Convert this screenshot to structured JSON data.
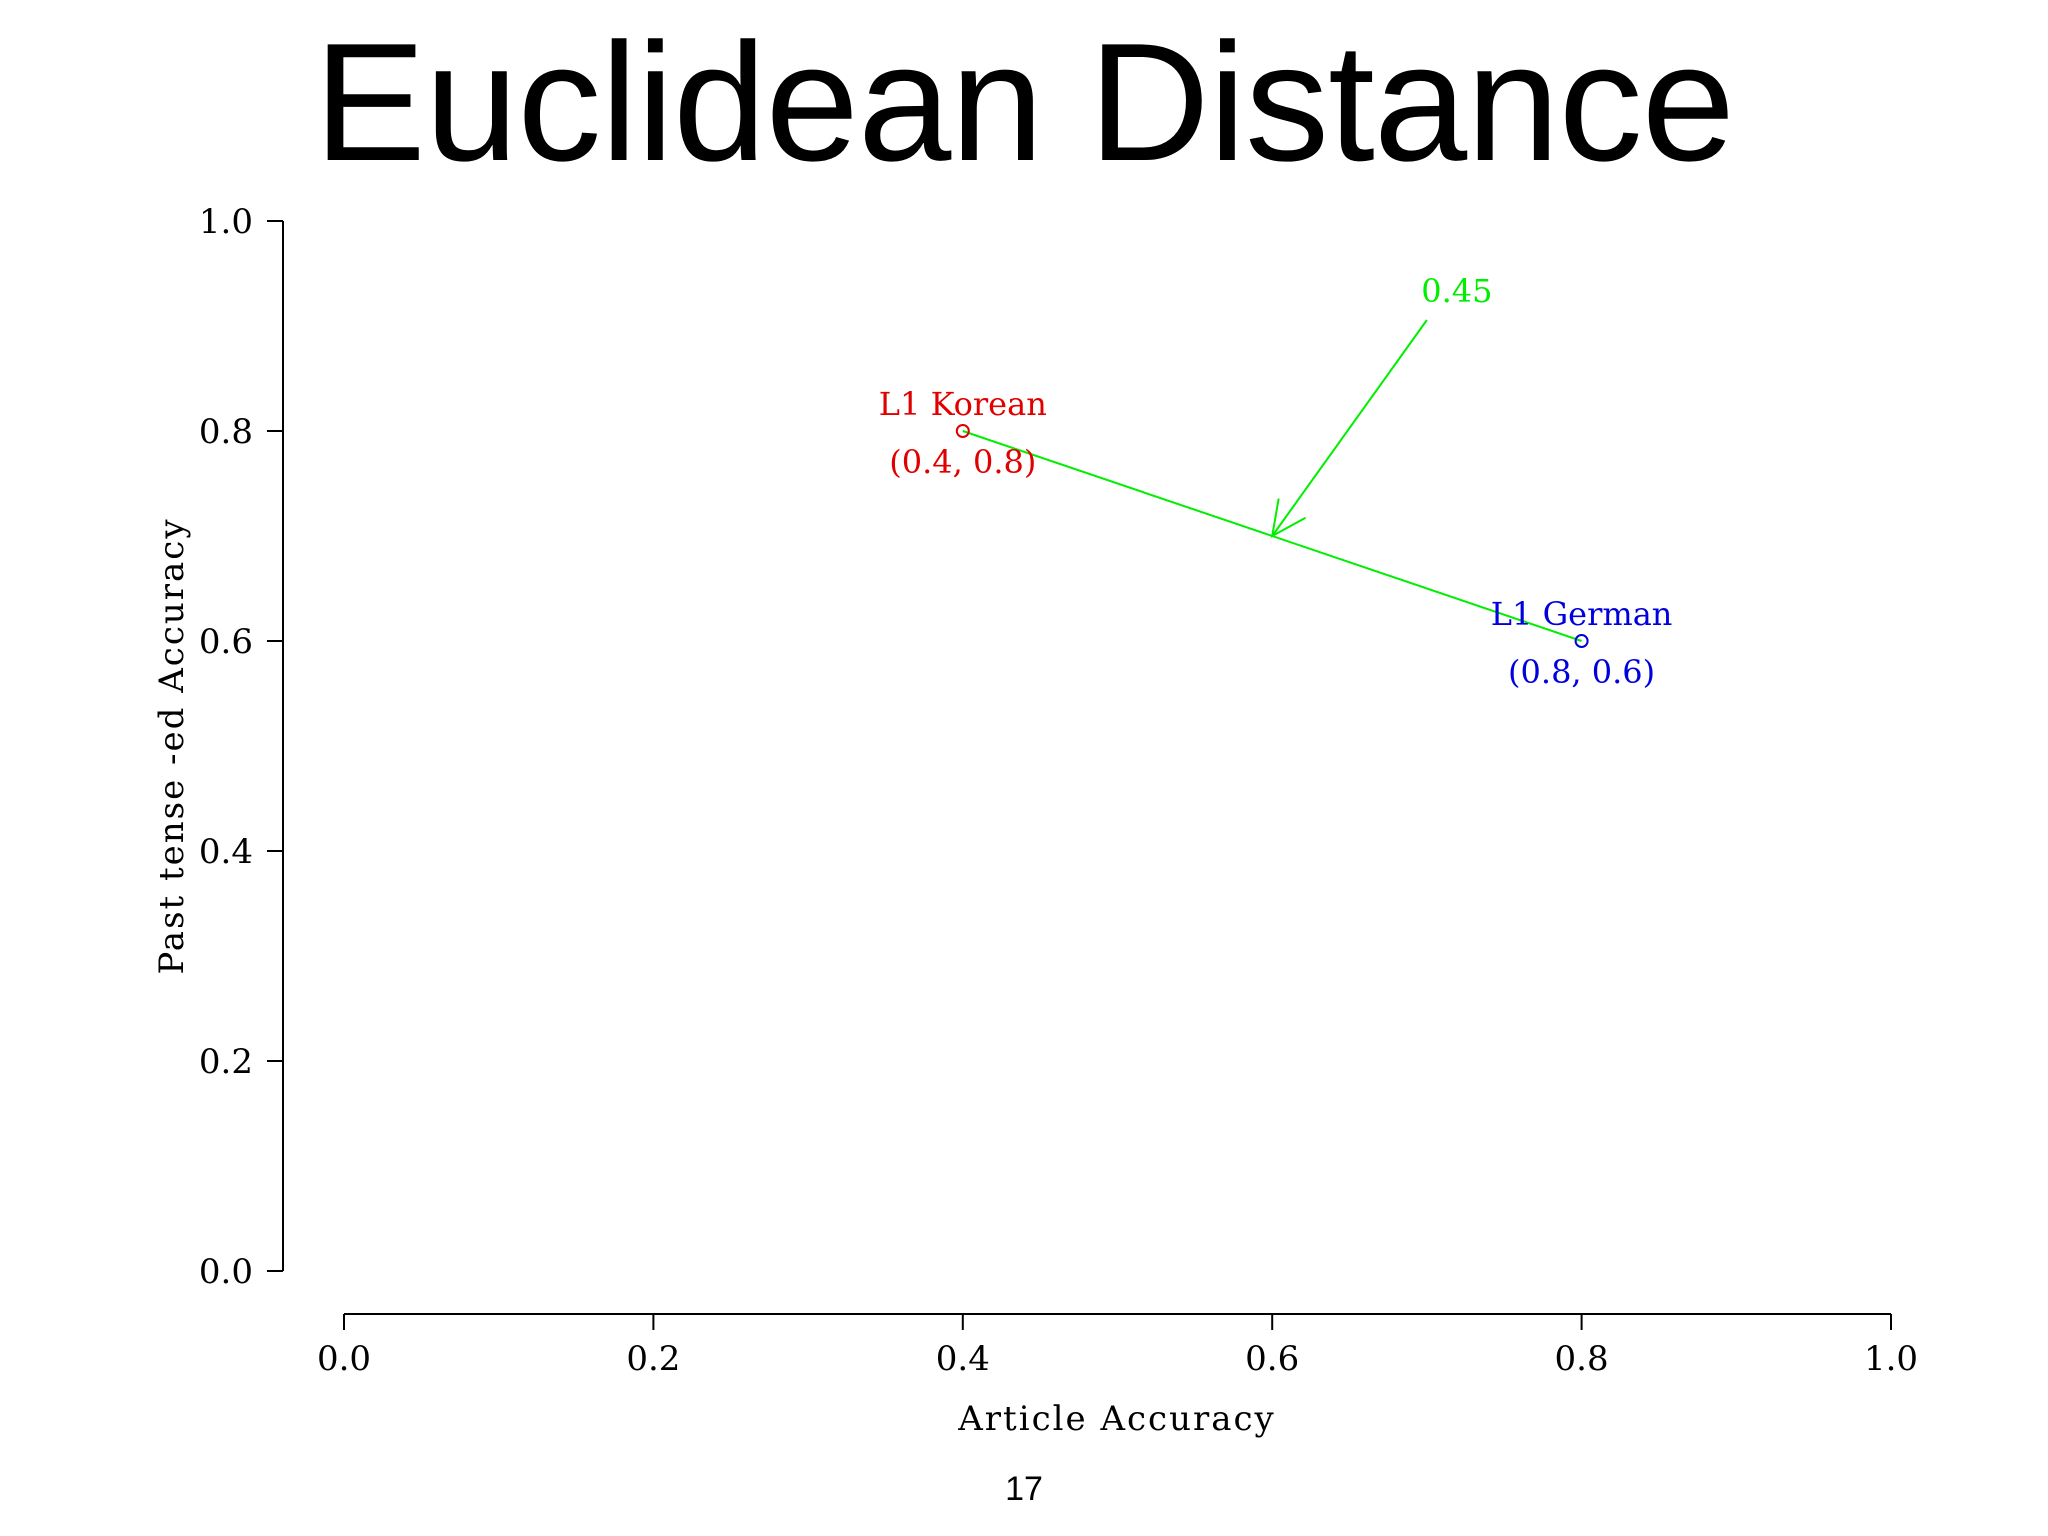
{
  "slide": {
    "title": "Euclidean Distance",
    "page_number": "17"
  },
  "chart_data": {
    "type": "scatter",
    "title": "",
    "xlabel": "Article Accuracy",
    "ylabel": "Past tense -ed Accuracy",
    "xlim": [
      0,
      1
    ],
    "ylim": [
      0,
      1
    ],
    "xticks": [
      "0.0",
      "0.2",
      "0.4",
      "0.6",
      "0.8",
      "1.0"
    ],
    "yticks": [
      "0.0",
      "0.2",
      "0.4",
      "0.6",
      "0.8",
      "1.0"
    ],
    "grid": false,
    "points": [
      {
        "name": "L1 Korean",
        "coord_label": "(0.4, 0.8)",
        "x": 0.4,
        "y": 0.8,
        "color": "#e00000"
      },
      {
        "name": "L1 German",
        "coord_label": "(0.8, 0.6)",
        "x": 0.8,
        "y": 0.6,
        "color": "#0000dd"
      }
    ],
    "segment": {
      "from": [
        0.4,
        0.8
      ],
      "to": [
        0.8,
        0.6
      ],
      "color": "#00ee00"
    },
    "annotation": {
      "text": "0.45",
      "arrow_from": [
        0.7,
        0.9
      ],
      "arrow_to": [
        0.6,
        0.7
      ],
      "color": "#00ee00"
    }
  }
}
